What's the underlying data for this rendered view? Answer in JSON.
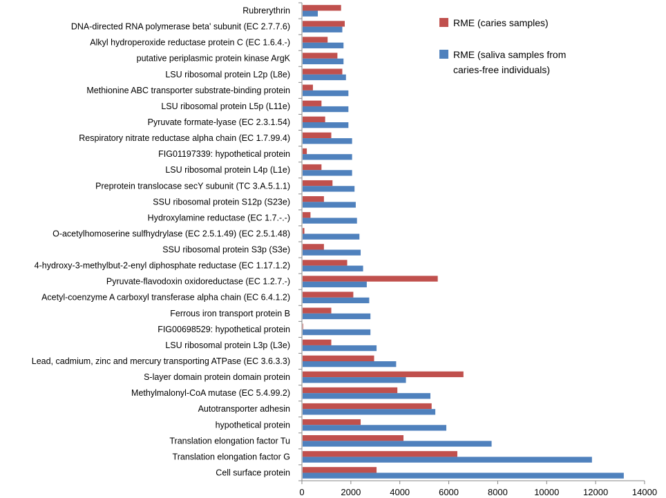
{
  "chart_data": {
    "type": "bar",
    "orientation": "horizontal",
    "title": "",
    "xlabel": "",
    "ylabel": "",
    "xlim": [
      0,
      14000
    ],
    "x_ticks": [
      0,
      2000,
      4000,
      6000,
      8000,
      10000,
      12000,
      14000
    ],
    "grid": false,
    "legend_position": "top-right",
    "categories": [
      "Rubrerythrin",
      "DNA-directed RNA polymerase beta' subunit (EC 2.7.7.6)",
      "Alkyl hydroperoxide reductase protein C (EC 1.6.4.-)",
      "putative periplasmic protein kinase ArgK",
      "LSU ribosomal protein L2p (L8e)",
      "Methionine ABC transporter substrate-binding protein",
      "LSU ribosomal protein L5p (L11e)",
      "Pyruvate formate-lyase (EC 2.3.1.54)",
      "Respiratory nitrate reductase alpha chain (EC 1.7.99.4)",
      "FIG01197339: hypothetical protein",
      "LSU ribosomal protein L4p (L1e)",
      "Preprotein translocase secY subunit (TC 3.A.5.1.1)",
      "SSU ribosomal protein S12p (S23e)",
      "Hydroxylamine reductase (EC 1.7.-.-)",
      "O-acetylhomoserine sulfhydrylase (EC 2.5.1.49) (EC 2.5.1.48)",
      "SSU ribosomal protein S3p (S3e)",
      "4-hydroxy-3-methylbut-2-enyl diphosphate reductase (EC 1.17.1.2)",
      "Pyruvate-flavodoxin oxidoreductase (EC 1.2.7.-)",
      "Acetyl-coenzyme A carboxyl transferase alpha chain (EC 6.4.1.2)",
      "Ferrous iron transport protein B",
      "FIG00698529: hypothetical protein",
      "LSU ribosomal protein L3p (L3e)",
      "Lead, cadmium, zinc and mercury transporting ATPase (EC 3.6.3.3)",
      "S-layer domain protein domain protein",
      "Methylmalonyl-CoA mutase (EC 5.4.99.2)",
      "Autotransporter adhesin",
      "hypothetical protein",
      "Translation elongation factor Tu",
      "Translation elongation factor G",
      "Cell surface protein"
    ],
    "series": [
      {
        "name": "RME (caries samples)",
        "color": "#C0504D",
        "values": [
          1600,
          1750,
          1050,
          1450,
          1650,
          450,
          800,
          950,
          1200,
          200,
          800,
          1250,
          900,
          350,
          100,
          900,
          1850,
          5550,
          2100,
          1200,
          50,
          1200,
          2950,
          6600,
          3900,
          5300,
          2400,
          4150,
          6350,
          3050
        ]
      },
      {
        "name": "RME (saliva samples from caries-free individuals)",
        "color": "#4F81BD",
        "values": [
          650,
          1650,
          1700,
          1700,
          1800,
          1900,
          1900,
          1900,
          2050,
          2050,
          2050,
          2150,
          2200,
          2250,
          2350,
          2400,
          2500,
          2650,
          2750,
          2800,
          2800,
          3050,
          3850,
          4250,
          5250,
          5450,
          5900,
          7750,
          11850,
          13150
        ]
      }
    ]
  }
}
